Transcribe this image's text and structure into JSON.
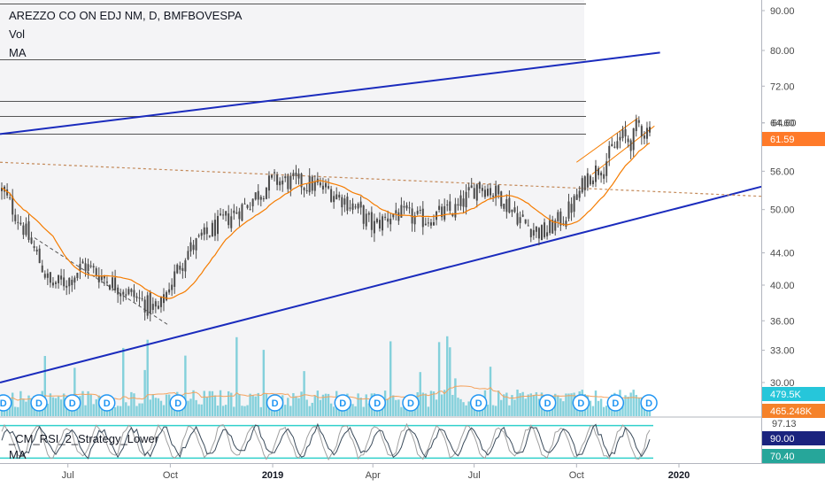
{
  "legend": {
    "title": "AREZZO CO ON EDJ NM, D, BMFBOVESPA",
    "vol": "Vol",
    "ma": "MA",
    "rsi_name": "_CM_RSI_2_Strategy_Lower",
    "rsi_ma": "MA"
  },
  "colors": {
    "candle": "#4a4a4a",
    "ma": "#f57c00",
    "trendline": "#1a2bbd",
    "volume": "#66c7d4",
    "volume_ma": "#f5a25d",
    "last_price": "#ff7a29",
    "rsi_line": "#3a4a5a",
    "rsi_gray": "#a0a0a0",
    "rsi_band": "#31d0cb",
    "dividend": "#2196f3"
  },
  "chart_data": [
    {
      "type": "candlestick",
      "title": "AREZZO CO ON EDJ NM, D, BMFBOVESPA",
      "scale": "log",
      "ylim": [
        28,
        95
      ],
      "y_ticks": [
        "30.00",
        "33.00",
        "36.00",
        "40.00",
        "44.00",
        "50.00",
        "56.00",
        "64.60",
        "72.00",
        "80.00",
        "90.00"
      ],
      "x_ticks": [
        "Jul",
        "Oct",
        "2019",
        "Apr",
        "Jul",
        "Oct",
        "2020"
      ],
      "current_price": "64.60",
      "last_price_badge": "61.59",
      "price_path": [
        {
          "date": "2018-05-02",
          "close": 53
        },
        {
          "date": "2018-05-20",
          "close": 48
        },
        {
          "date": "2018-06-15",
          "close": 40
        },
        {
          "date": "2018-07-01",
          "close": 40.5
        },
        {
          "date": "2018-07-15",
          "close": 42.5
        },
        {
          "date": "2018-08-01",
          "close": 41
        },
        {
          "date": "2018-09-01",
          "close": 38.5
        },
        {
          "date": "2018-09-20",
          "close": 37
        },
        {
          "date": "2018-10-15",
          "close": 44
        },
        {
          "date": "2018-11-15",
          "close": 48
        },
        {
          "date": "2018-12-10",
          "close": 51
        },
        {
          "date": "2019-01-01",
          "close": 54.5
        },
        {
          "date": "2019-02-01",
          "close": 54
        },
        {
          "date": "2019-02-20",
          "close": 53
        },
        {
          "date": "2019-03-15",
          "close": 50.5
        },
        {
          "date": "2019-04-01",
          "close": 47.5
        },
        {
          "date": "2019-04-20",
          "close": 49.5
        },
        {
          "date": "2019-05-15",
          "close": 48.5
        },
        {
          "date": "2019-06-15",
          "close": 50
        },
        {
          "date": "2019-07-05",
          "close": 54
        },
        {
          "date": "2019-07-25",
          "close": 52
        },
        {
          "date": "2019-08-15",
          "close": 48
        },
        {
          "date": "2019-09-01",
          "close": 46.5
        },
        {
          "date": "2019-09-20",
          "close": 49
        },
        {
          "date": "2019-10-01",
          "close": 51.5
        },
        {
          "date": "2019-10-10",
          "close": 55
        },
        {
          "date": "2019-10-25",
          "close": 57
        },
        {
          "date": "2019-11-10",
          "close": 62
        },
        {
          "date": "2019-11-20",
          "close": 61
        },
        {
          "date": "2019-11-25",
          "close": 64.6
        },
        {
          "date": "2019-12-02",
          "close": 62.5
        },
        {
          "date": "2019-12-06",
          "close": 64.6
        }
      ],
      "horizontal_levels": [
        92,
        78,
        69,
        66,
        62.5
      ],
      "trendlines": [
        {
          "from": [
            "2018-05-01",
            62.5
          ],
          "to": [
            "2019-12-15",
            79.5
          ],
          "style": "solid-blue"
        },
        {
          "from": [
            "2018-05-01",
            30
          ],
          "to": [
            "2020-03-15",
            53.5
          ],
          "style": "solid-blue"
        },
        {
          "from": [
            "2018-05-01",
            57.5
          ],
          "to": [
            "2020-03-15",
            52
          ],
          "style": "dashed-orange"
        },
        {
          "from": [
            "2018-06-01",
            46
          ],
          "to": [
            "2018-09-30",
            35.5
          ],
          "style": "dashed-gray"
        },
        {
          "from": [
            "2019-10-01",
            57.5
          ],
          "to": [
            "2019-11-25",
            65.5
          ],
          "style": "thin-orange"
        },
        {
          "from": [
            "2019-10-15",
            55.5
          ],
          "to": [
            "2019-12-10",
            64
          ],
          "style": "thin-orange"
        }
      ]
    },
    {
      "type": "bar",
      "title": "Vol",
      "series": [
        {
          "name": "Vol"
        },
        {
          "name": "MA"
        }
      ],
      "last_volume": "479.5K",
      "volume_ma": "465.248K",
      "dividend_label": "D",
      "dividend_dates": [
        "2018-05-04",
        "2018-06-05",
        "2018-07-05",
        "2018-08-05",
        "2018-10-08",
        "2019-01-03",
        "2019-03-05",
        "2019-04-05",
        "2019-05-05",
        "2019-07-05",
        "2019-09-05",
        "2019-10-05",
        "2019-11-05",
        "2019-12-05"
      ]
    },
    {
      "type": "line",
      "title": "_CM_RSI_2_Strategy_Lower",
      "series": [
        {
          "name": "_CM_RSI_2_Strategy_Lower"
        },
        {
          "name": "MA"
        }
      ],
      "ylim": [
        0,
        100
      ],
      "bands": [
        90,
        10
      ],
      "y_labels": [
        "97.13",
        "90.00",
        "70.40"
      ]
    }
  ]
}
